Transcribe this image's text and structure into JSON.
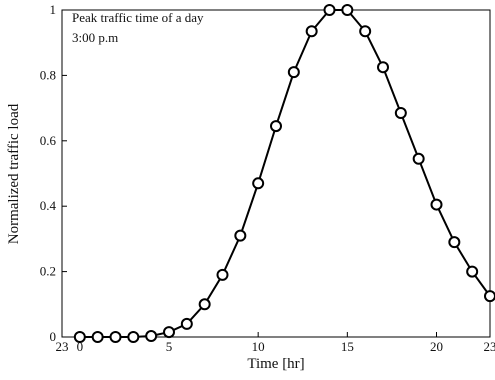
{
  "chart_data": {
    "type": "line",
    "xlabel": "Time [hr]",
    "ylabel": "Normalized traffic load",
    "annotations": [
      "Peak traffic time of a day",
      "3:00 p.m"
    ],
    "x": [
      0,
      1,
      2,
      3,
      4,
      5,
      6,
      7,
      8,
      9,
      10,
      11,
      12,
      13,
      14,
      15,
      16,
      17,
      18,
      19,
      20,
      21,
      22,
      23
    ],
    "series": [
      {
        "color": "#000000",
        "values": [
          0,
          0,
          0,
          0,
          0.003,
          0.015,
          0.04,
          0.1,
          0.19,
          0.31,
          0.47,
          0.645,
          0.81,
          0.935,
          1.0,
          1.0,
          0.935,
          0.825,
          0.685,
          0.545,
          0.405,
          0.29,
          0.2,
          0.125
        ]
      }
    ],
    "xlim": [
      -1,
      23
    ],
    "xticks": [
      {
        "value": -1,
        "label": "23"
      },
      0,
      5,
      10,
      15,
      20,
      23
    ],
    "ylim": [
      0,
      1
    ],
    "yticks": [
      0,
      0.2,
      0.4,
      0.6,
      0.8,
      1
    ],
    "grid": false
  }
}
